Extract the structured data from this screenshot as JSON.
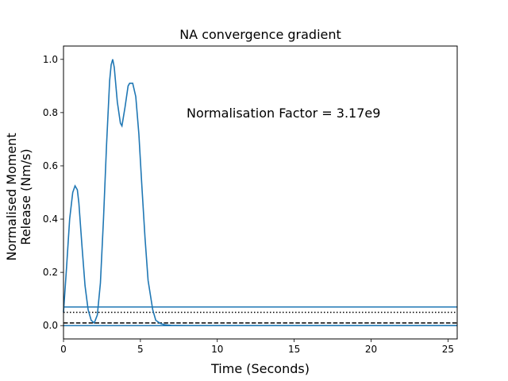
{
  "chart_data": {
    "type": "line",
    "title": "NA convergence gradient",
    "xlabel": "Time (Seconds)",
    "ylabel_lines": [
      "Normalised Moment",
      "Release (Nm/s)"
    ],
    "annotation": "Normalisation Factor = 3.17e9",
    "annotation_pos": [
      8.0,
      0.8
    ],
    "xlim": [
      0,
      25.6
    ],
    "ylim": [
      -0.05,
      1.05
    ],
    "xticks": [
      0,
      5,
      10,
      15,
      20,
      25
    ],
    "yticks": [
      0.0,
      0.2,
      0.4,
      0.6,
      0.8,
      1.0
    ],
    "grid": false,
    "line_color": "#1f77b4",
    "curve": {
      "x": [
        0,
        0.2,
        0.4,
        0.6,
        0.75,
        0.9,
        1.0,
        1.2,
        1.4,
        1.6,
        1.8,
        2.0,
        2.2,
        2.4,
        2.6,
        2.8,
        3.0,
        3.1,
        3.2,
        3.3,
        3.5,
        3.7,
        3.8,
        4.0,
        4.2,
        4.3,
        4.5,
        4.7,
        4.9,
        5.1,
        5.3,
        5.5,
        5.8,
        6.0,
        6.3,
        6.6,
        7.0,
        8,
        10,
        12,
        15,
        18,
        20,
        22,
        25,
        25.6
      ],
      "y": [
        0.05,
        0.22,
        0.4,
        0.5,
        0.525,
        0.51,
        0.46,
        0.3,
        0.15,
        0.06,
        0.02,
        0.01,
        0.04,
        0.16,
        0.4,
        0.68,
        0.92,
        0.98,
        1.0,
        0.97,
        0.84,
        0.76,
        0.75,
        0.82,
        0.9,
        0.91,
        0.91,
        0.86,
        0.72,
        0.52,
        0.33,
        0.17,
        0.06,
        0.02,
        0.008,
        0.003,
        0.001,
        0.0,
        0.0,
        0.0,
        0.0,
        0.0,
        0.0,
        0.0,
        0.0,
        0.0
      ]
    },
    "hlines": [
      {
        "y": 0.07,
        "style": "solid",
        "color": "#1f77b4"
      },
      {
        "y": 0.05,
        "style": "dotted",
        "color": "#000000"
      },
      {
        "y": 0.01,
        "style": "dashed",
        "color": "#000000"
      },
      {
        "y": 0.0,
        "style": "solid",
        "color": "#1f77b4"
      }
    ]
  }
}
